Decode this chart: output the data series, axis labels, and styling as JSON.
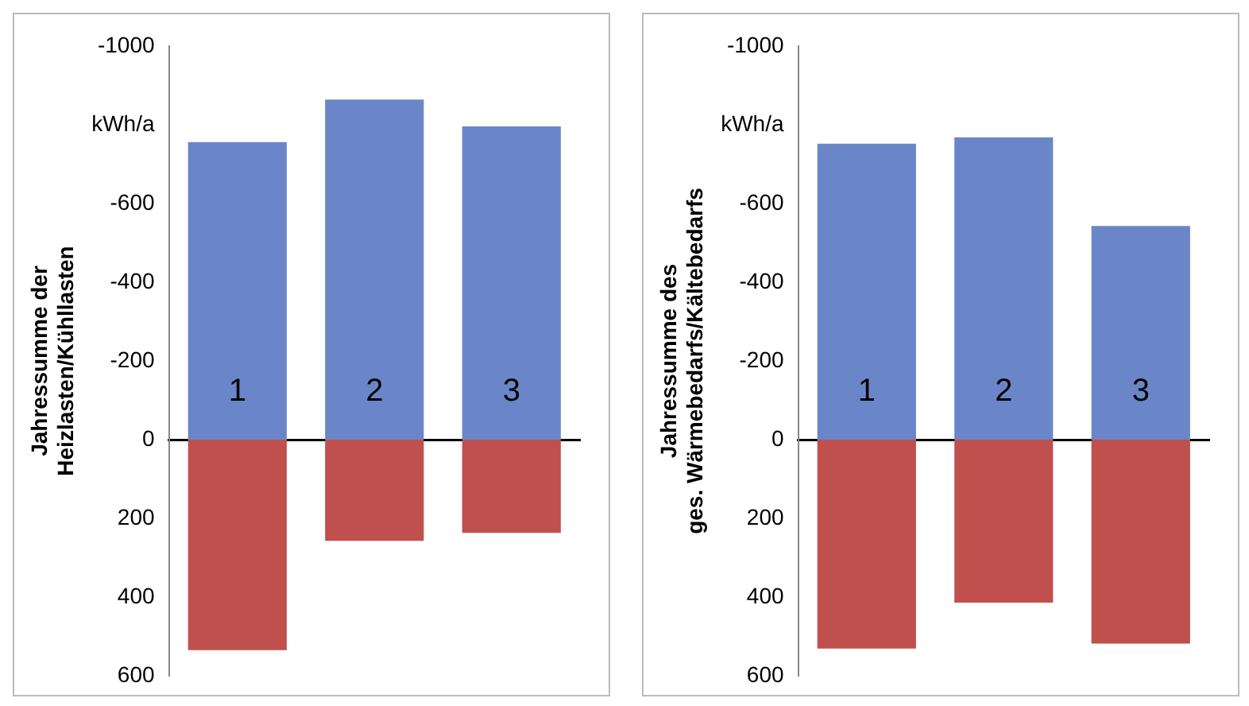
{
  "chart_data": [
    {
      "type": "bar",
      "categories": [
        "1",
        "2",
        "3"
      ],
      "stacked": true,
      "ylabel": "Jahressumme der\nHeizlasten/Kühllasten",
      "ylim": [
        600,
        -1000
      ],
      "yticks": [
        -1000,
        {
          "value": -800,
          "label": "kWh/a"
        },
        -600,
        -400,
        -200,
        0,
        200,
        400,
        600
      ],
      "grid": false,
      "legend": false,
      "series": [
        {
          "color": "#6a86c8",
          "values": [
            -756,
            -864,
            -796
          ]
        },
        {
          "color": "#c0504d",
          "values": [
            535,
            257,
            237
          ]
        }
      ]
    },
    {
      "type": "bar",
      "categories": [
        "1",
        "2",
        "3"
      ],
      "stacked": true,
      "ylabel": "Jahressumme des\nges. Wärmebedarfs/Kältebedarfs",
      "ylim": [
        600,
        -1000
      ],
      "yticks": [
        -1000,
        {
          "value": -800,
          "label": "kWh/a"
        },
        -600,
        -400,
        -200,
        0,
        200,
        400,
        600
      ],
      "grid": false,
      "legend": false,
      "series": [
        {
          "color": "#6a86c8",
          "values": [
            -752,
            -768,
            -543
          ]
        },
        {
          "color": "#c0504d",
          "values": [
            531,
            414,
            518
          ]
        }
      ]
    }
  ]
}
